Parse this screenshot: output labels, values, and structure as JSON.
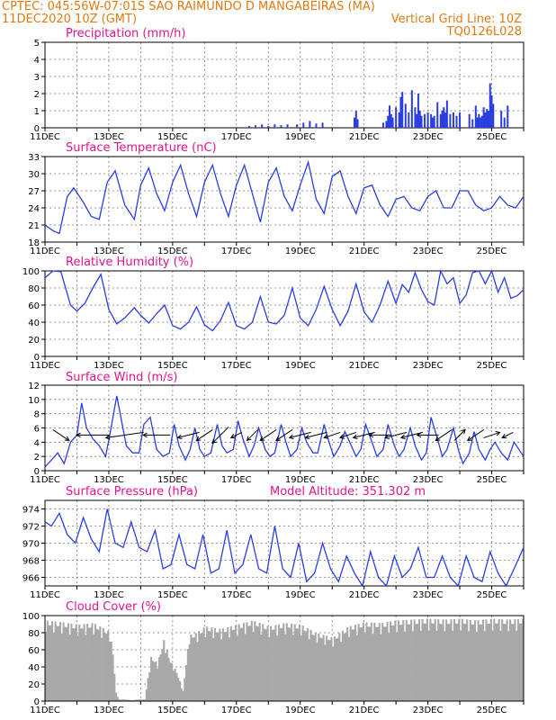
{
  "header": {
    "line1": "CPTEC:  045:56W-07:01S  SAO RAIMUNDO D MANGABEIRAS (MA)",
    "line2_left": "11DEC2020 10Z (GMT)",
    "line2_right": "Vertical Grid Line: 10Z",
    "line3_right": "TQ0126L028"
  },
  "colors": {
    "title": "#e0148c",
    "header": "#e07a10",
    "line": "#2a3ee0",
    "cloud": "#a8a8a8",
    "arrow": "#000000"
  },
  "x_tick_labels": [
    "11DEC",
    "13DEC",
    "15DEC",
    "17DEC",
    "19DEC",
    "21DEC",
    "23DEC",
    "25DEC"
  ],
  "chart_data": [
    {
      "id": "precip",
      "type": "bar",
      "title": "Precipitation (mm/h)",
      "x_unit": "days since 11DEC 10Z",
      "ylim": [
        0,
        5
      ],
      "yticks": [
        0,
        1,
        2,
        3,
        4,
        5
      ],
      "grid": true,
      "x": [
        6.4,
        6.6,
        6.8,
        7.0,
        7.2,
        7.4,
        7.6,
        7.9,
        8.1,
        8.3,
        8.5,
        8.7,
        9.7,
        9.75,
        9.8,
        10.6,
        10.7,
        10.75,
        10.8,
        10.85,
        10.9,
        11.0,
        11.1,
        11.15,
        11.2,
        11.3,
        11.4,
        11.5,
        11.6,
        11.65,
        11.7,
        11.75,
        11.8,
        11.9,
        12.0,
        12.1,
        12.15,
        12.2,
        12.3,
        12.4,
        12.45,
        12.5,
        12.55,
        12.6,
        12.7,
        12.8,
        12.9,
        13.0,
        13.3,
        13.4,
        13.5,
        13.55,
        13.6,
        13.65,
        13.7,
        13.75,
        13.8,
        13.85,
        13.9,
        13.95,
        14.0,
        14.05,
        14.3,
        14.4,
        14.5
      ],
      "values": [
        0.1,
        0.15,
        0.2,
        0.1,
        0.2,
        0.15,
        0.2,
        0.2,
        0.3,
        0.4,
        0.25,
        0.3,
        0.6,
        1.0,
        0.5,
        0.3,
        0.4,
        0.7,
        1.3,
        0.8,
        0.6,
        1.2,
        0.9,
        1.8,
        2.1,
        1.4,
        0.9,
        2.2,
        1.2,
        0.8,
        2.0,
        1.0,
        0.7,
        0.8,
        0.9,
        0.8,
        0.6,
        0.7,
        1.5,
        0.8,
        1.0,
        1.2,
        0.9,
        1.6,
        0.8,
        0.9,
        0.7,
        0.9,
        0.8,
        0.5,
        1.3,
        0.6,
        0.8,
        0.6,
        0.7,
        1.2,
        0.9,
        1.1,
        1.0,
        2.6,
        1.9,
        1.4,
        1.0,
        0.6,
        1.3
      ]
    },
    {
      "id": "temp",
      "type": "line",
      "title": "Surface Temperature (nC)",
      "x_unit": "days since 11DEC 10Z",
      "ylim": [
        18,
        33
      ],
      "yticks": [
        18,
        21,
        24,
        27,
        30,
        33
      ],
      "grid": true,
      "x": [
        0.0,
        0.25,
        0.45,
        0.7,
        0.9,
        1.2,
        1.45,
        1.7,
        1.95,
        2.2,
        2.5,
        2.8,
        3.0,
        3.25,
        3.5,
        3.75,
        4.0,
        4.25,
        4.5,
        4.75,
        5.0,
        5.25,
        5.5,
        5.75,
        6.0,
        6.25,
        6.5,
        6.75,
        7.0,
        7.25,
        7.5,
        7.75,
        8.0,
        8.25,
        8.5,
        8.75,
        9.0,
        9.25,
        9.5,
        9.75,
        10.0,
        10.25,
        10.5,
        10.75,
        11.0,
        11.25,
        11.5,
        11.75,
        12.0,
        12.25,
        12.5,
        12.75,
        13.0,
        13.25,
        13.5,
        13.75,
        14.0,
        14.25,
        14.5,
        14.75,
        15.0
      ],
      "values": [
        21.0,
        20.0,
        19.5,
        26.0,
        27.5,
        25.0,
        22.5,
        22.0,
        28.5,
        30.5,
        24.5,
        22.0,
        28.0,
        31.0,
        26.5,
        23.5,
        28.5,
        31.5,
        26.5,
        22.5,
        28.5,
        31.5,
        26.5,
        22.5,
        28.0,
        31.5,
        26.5,
        21.5,
        28.5,
        31.0,
        26.0,
        23.5,
        28.0,
        32.0,
        25.5,
        23.0,
        29.5,
        30.5,
        26.0,
        23.0,
        27.5,
        28.0,
        24.5,
        22.5,
        25.5,
        26.0,
        24.0,
        23.5,
        26.0,
        27.0,
        24.0,
        24.0,
        27.0,
        27.0,
        24.5,
        23.5,
        24.0,
        26.0,
        24.5,
        24.0,
        26.0
      ]
    },
    {
      "id": "rh",
      "type": "line",
      "title": "Relative Humidity (%)",
      "x_unit": "days since 11DEC 10Z",
      "ylim": [
        0,
        100
      ],
      "yticks": [
        0,
        20,
        40,
        60,
        80,
        100
      ],
      "grid": true,
      "x": [
        0.0,
        0.25,
        0.5,
        0.8,
        1.0,
        1.25,
        1.5,
        1.75,
        2.0,
        2.25,
        2.5,
        2.8,
        3.0,
        3.25,
        3.5,
        3.75,
        4.0,
        4.25,
        4.5,
        4.75,
        5.0,
        5.25,
        5.5,
        5.75,
        6.0,
        6.25,
        6.5,
        6.75,
        7.0,
        7.25,
        7.5,
        7.75,
        8.0,
        8.25,
        8.5,
        8.75,
        9.0,
        9.25,
        9.5,
        9.75,
        10.0,
        10.25,
        10.5,
        10.75,
        11.0,
        11.2,
        11.4,
        11.6,
        11.8,
        12.0,
        12.2,
        12.4,
        12.6,
        12.8,
        13.0,
        13.2,
        13.4,
        13.6,
        13.8,
        14.0,
        14.2,
        14.4,
        14.6,
        14.8,
        15.0
      ],
      "values": [
        92,
        100,
        99,
        60,
        53,
        62,
        80,
        96,
        55,
        38,
        45,
        57,
        48,
        39,
        50,
        60,
        36,
        32,
        40,
        58,
        37,
        30,
        42,
        63,
        36,
        32,
        40,
        70,
        40,
        38,
        48,
        80,
        45,
        36,
        55,
        82,
        55,
        36,
        53,
        85,
        52,
        40,
        60,
        88,
        62,
        84,
        75,
        98,
        78,
        64,
        60,
        100,
        85,
        92,
        62,
        72,
        98,
        100,
        85,
        100,
        75,
        92,
        68,
        71,
        78
      ]
    },
    {
      "id": "wind",
      "type": "line",
      "title": "Surface Wind (m/s)",
      "x_unit": "days since 11DEC 10Z",
      "ylim": [
        0,
        12
      ],
      "yticks": [
        0,
        2,
        4,
        6,
        8,
        10,
        12
      ],
      "grid": true,
      "x": [
        0.0,
        0.2,
        0.4,
        0.6,
        0.8,
        1.0,
        1.15,
        1.3,
        1.5,
        1.7,
        1.9,
        2.05,
        2.25,
        2.4,
        2.55,
        2.75,
        2.95,
        3.1,
        3.3,
        3.5,
        3.7,
        3.9,
        4.05,
        4.2,
        4.4,
        4.55,
        4.7,
        4.85,
        5.0,
        5.2,
        5.4,
        5.55,
        5.7,
        5.9,
        6.05,
        6.2,
        6.4,
        6.55,
        6.7,
        6.9,
        7.05,
        7.2,
        7.4,
        7.55,
        7.7,
        7.9,
        8.05,
        8.2,
        8.4,
        8.55,
        8.75,
        8.9,
        9.05,
        9.25,
        9.4,
        9.6,
        9.75,
        9.9,
        10.05,
        10.25,
        10.4,
        10.6,
        10.75,
        10.95,
        11.1,
        11.25,
        11.45,
        11.6,
        11.8,
        11.95,
        12.1,
        12.3,
        12.45,
        12.6,
        12.8,
        12.95,
        13.1,
        13.3,
        13.45,
        13.6,
        13.8,
        13.95,
        14.1,
        14.3,
        14.5,
        14.7,
        14.85,
        15.0
      ],
      "values": [
        0.5,
        1.5,
        2.5,
        1.0,
        4.0,
        5.0,
        9.5,
        6.0,
        4.5,
        3.5,
        2.0,
        5.5,
        10.5,
        7.0,
        3.5,
        2.5,
        2.5,
        6.5,
        7.5,
        3.0,
        2.0,
        2.5,
        6.5,
        3.5,
        1.5,
        3.0,
        6.0,
        3.0,
        2.0,
        2.5,
        6.5,
        3.5,
        2.5,
        3.0,
        7.0,
        4.5,
        2.0,
        3.5,
        6.0,
        3.0,
        2.0,
        2.5,
        6.5,
        4.0,
        2.0,
        3.0,
        6.0,
        4.0,
        2.5,
        2.5,
        6.5,
        4.0,
        2.0,
        3.5,
        5.5,
        3.5,
        2.0,
        3.0,
        6.5,
        4.0,
        2.0,
        3.0,
        6.5,
        3.5,
        2.0,
        3.0,
        6.0,
        3.5,
        1.5,
        2.5,
        7.5,
        4.5,
        2.0,
        3.0,
        6.0,
        3.0,
        1.0,
        2.5,
        5.5,
        3.0,
        1.5,
        3.0,
        4.0,
        2.5,
        1.5,
        4.0,
        3.0,
        2.0
      ]
    },
    {
      "id": "wind_vectors",
      "type": "scatter",
      "x_unit": "days since 11DEC 10Z",
      "x": [
        0.5,
        1.5,
        2.5,
        3.5,
        4.5,
        5.0,
        5.5,
        6.0,
        6.5,
        7.0,
        7.5,
        8.0,
        8.5,
        9.0,
        9.5,
        10.0,
        10.5,
        11.0,
        11.5,
        12.0,
        12.5,
        13.0,
        13.5,
        14.0,
        14.5
      ],
      "u_ms": [
        3,
        -6,
        -7,
        -5,
        -4,
        -3,
        -3,
        -2,
        -2,
        -3,
        -3,
        -4,
        -4,
        -3,
        -3,
        -4,
        -4,
        -4,
        -4,
        -4,
        -3,
        2,
        -3,
        3,
        -2
      ],
      "v_ms": [
        -2,
        0,
        -1,
        0,
        -1,
        -2,
        -3,
        -1,
        -2,
        -2,
        -2,
        -1,
        -1,
        -1,
        -1,
        -1,
        0,
        -1,
        -1,
        0,
        -2,
        2,
        -2,
        1,
        -1
      ]
    },
    {
      "id": "pressure",
      "type": "line",
      "title": "Surface Pressure (hPa)",
      "annotation": "Model Altitude: 351.302 m",
      "x_unit": "days since 11DEC 10Z",
      "ylim": [
        965,
        975
      ],
      "yticks": [
        966,
        968,
        970,
        972,
        974
      ],
      "grid": true,
      "x": [
        0.0,
        0.2,
        0.45,
        0.7,
        0.95,
        1.2,
        1.45,
        1.7,
        1.95,
        2.2,
        2.45,
        2.7,
        2.95,
        3.2,
        3.45,
        3.7,
        3.95,
        4.2,
        4.45,
        4.7,
        4.95,
        5.2,
        5.45,
        5.7,
        5.95,
        6.2,
        6.45,
        6.7,
        6.95,
        7.2,
        7.45,
        7.7,
        7.95,
        8.2,
        8.45,
        8.7,
        8.95,
        9.2,
        9.45,
        9.7,
        9.95,
        10.2,
        10.45,
        10.7,
        10.95,
        11.2,
        11.45,
        11.7,
        11.95,
        12.2,
        12.45,
        12.7,
        12.95,
        13.2,
        13.45,
        13.7,
        13.95,
        14.2,
        14.45,
        14.7,
        15.0
      ],
      "values": [
        972.5,
        972.0,
        973.5,
        971.0,
        970.0,
        973.0,
        970.5,
        969.0,
        974.0,
        970.0,
        969.5,
        972.5,
        969.5,
        969.0,
        971.5,
        967.0,
        967.5,
        971.0,
        967.5,
        967.0,
        971.0,
        966.5,
        967.0,
        971.5,
        966.5,
        967.5,
        971.0,
        967.0,
        966.5,
        972.0,
        967.0,
        966.0,
        970.0,
        965.5,
        966.5,
        970.0,
        967.0,
        965.5,
        968.5,
        966.5,
        965.0,
        969.0,
        966.0,
        965.0,
        968.5,
        966.0,
        967.0,
        969.5,
        966.0,
        966.0,
        968.5,
        966.0,
        965.0,
        968.5,
        966.0,
        965.5,
        969.0,
        966.5,
        965.0,
        967.0,
        969.5
      ]
    },
    {
      "id": "cloud",
      "type": "bar",
      "title": "Cloud Cover (%)",
      "x_unit": "days since 11DEC 10Z",
      "ylim": [
        0,
        100
      ],
      "yticks": [
        0,
        20,
        40,
        60,
        80,
        100
      ],
      "grid": true,
      "x": [
        0.0,
        0.5,
        1.0,
        1.5,
        2.0,
        2.1,
        2.2,
        2.3,
        2.5,
        2.7,
        2.9,
        3.1,
        3.3,
        3.5,
        3.7,
        3.9,
        4.1,
        4.3,
        4.5,
        4.7,
        5.0,
        5.5,
        6.0,
        6.5,
        7.0,
        7.5,
        8.0,
        8.5,
        9.0,
        9.5,
        10.0,
        10.5,
        11.0,
        11.5,
        12.0,
        12.5,
        13.0,
        13.5,
        14.0,
        14.5,
        15.0
      ],
      "values": [
        95,
        93,
        90,
        92,
        82,
        58,
        10,
        2,
        2,
        1,
        2,
        2,
        52,
        45,
        72,
        48,
        35,
        12,
        78,
        80,
        88,
        85,
        90,
        95,
        88,
        92,
        90,
        80,
        75,
        88,
        93,
        92,
        95,
        96,
        97,
        96,
        97,
        95,
        97,
        96,
        97
      ]
    }
  ]
}
